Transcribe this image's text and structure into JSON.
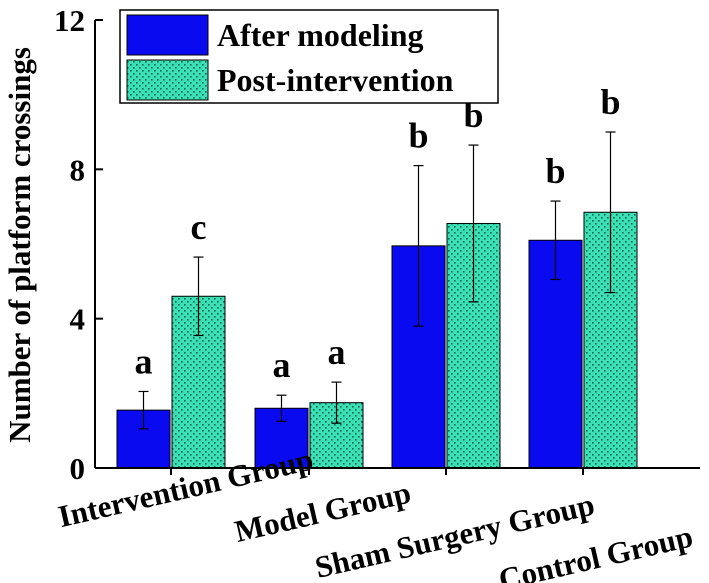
{
  "chart_data": {
    "type": "bar",
    "ylabel": "Number of platform crossings",
    "ylim": [
      0,
      12
    ],
    "yticks": [
      0,
      4,
      8,
      12
    ],
    "categories": [
      "Intervention Group",
      "Model Group",
      "Sham Surgery Group",
      "Control Group"
    ],
    "series": [
      {
        "name": "After modeling",
        "color": "#0a0af0",
        "pattern": "solid",
        "values": [
          1.55,
          1.6,
          5.95,
          6.1
        ],
        "errors": [
          0.5,
          0.35,
          2.15,
          1.05
        ],
        "sig": [
          "a",
          "a",
          "b",
          "b"
        ]
      },
      {
        "name": "Post-intervention",
        "color": "#3de0b4",
        "pattern": "dotted",
        "values": [
          4.6,
          1.75,
          6.55,
          6.85
        ],
        "errors": [
          1.05,
          0.55,
          2.1,
          2.15
        ],
        "sig": [
          "c",
          "a",
          "b",
          "b"
        ]
      }
    ],
    "legend_position": "top-left"
  }
}
